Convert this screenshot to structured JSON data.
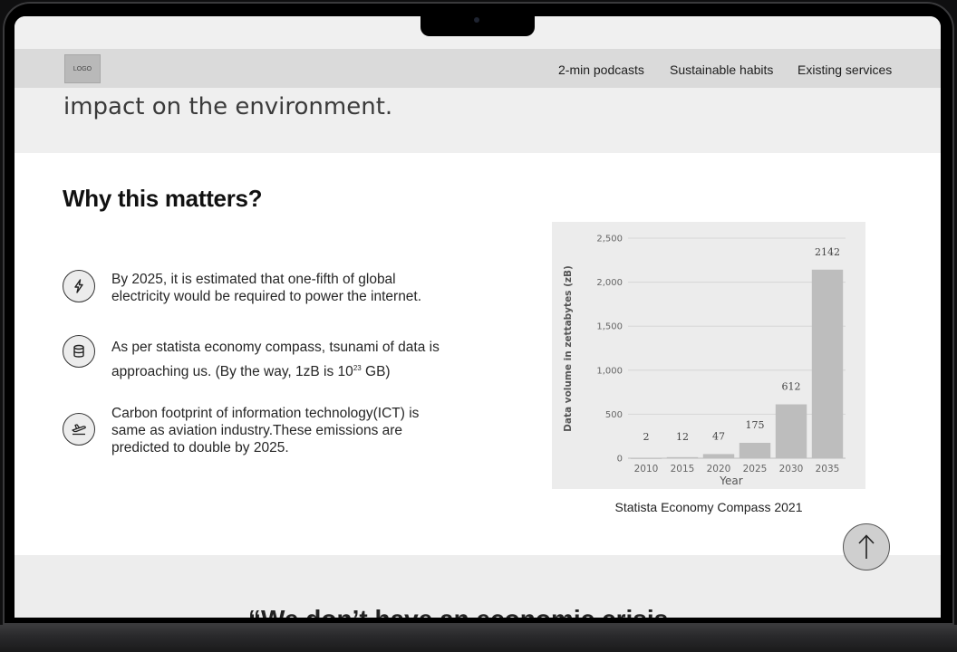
{
  "nav": {
    "logo": "LOGO",
    "links": [
      "2-min podcasts",
      "Sustainable habits",
      "Existing services"
    ]
  },
  "hero": {
    "text": "impact on the environment."
  },
  "section": {
    "title": "Why this matters?",
    "facts": [
      {
        "icon": "lightning-icon",
        "text": "By 2025, it is estimated that one-fifth of global electricity would be required to power the internet."
      },
      {
        "icon": "database-icon",
        "text_before": "As per statista economy compass, tsunami of data is approaching us. (By the way, 1zB is 10",
        "text_sup": "23",
        "text_after": " GB)"
      },
      {
        "icon": "airplane-icon",
        "text": "Carbon footprint of information technology(ICT) is same as aviation industry.These emissions are predicted to double by 2025."
      }
    ]
  },
  "chart_data": {
    "type": "bar",
    "categories": [
      "2010",
      "2015",
      "2020",
      "2025",
      "2030",
      "2035"
    ],
    "values": [
      2,
      12,
      47,
      175,
      612,
      2142
    ],
    "data_labels": [
      "2",
      "12",
      "47",
      "175",
      "612",
      "2142"
    ],
    "xlabel": "Year",
    "ylabel": "Data volume in zettabytes (zB)",
    "ylim": [
      0,
      2500
    ],
    "yticks": [
      0,
      500,
      1000,
      1500,
      2000,
      2500
    ],
    "ytick_labels": [
      "0",
      "500",
      "1,000",
      "1,500",
      "2,000",
      "2,500"
    ],
    "grid": true,
    "bar_color": "#bdbdbd"
  },
  "caption": "Statista Economy Compass 2021",
  "quote_partial": "“We don’t have an economic crisis,"
}
